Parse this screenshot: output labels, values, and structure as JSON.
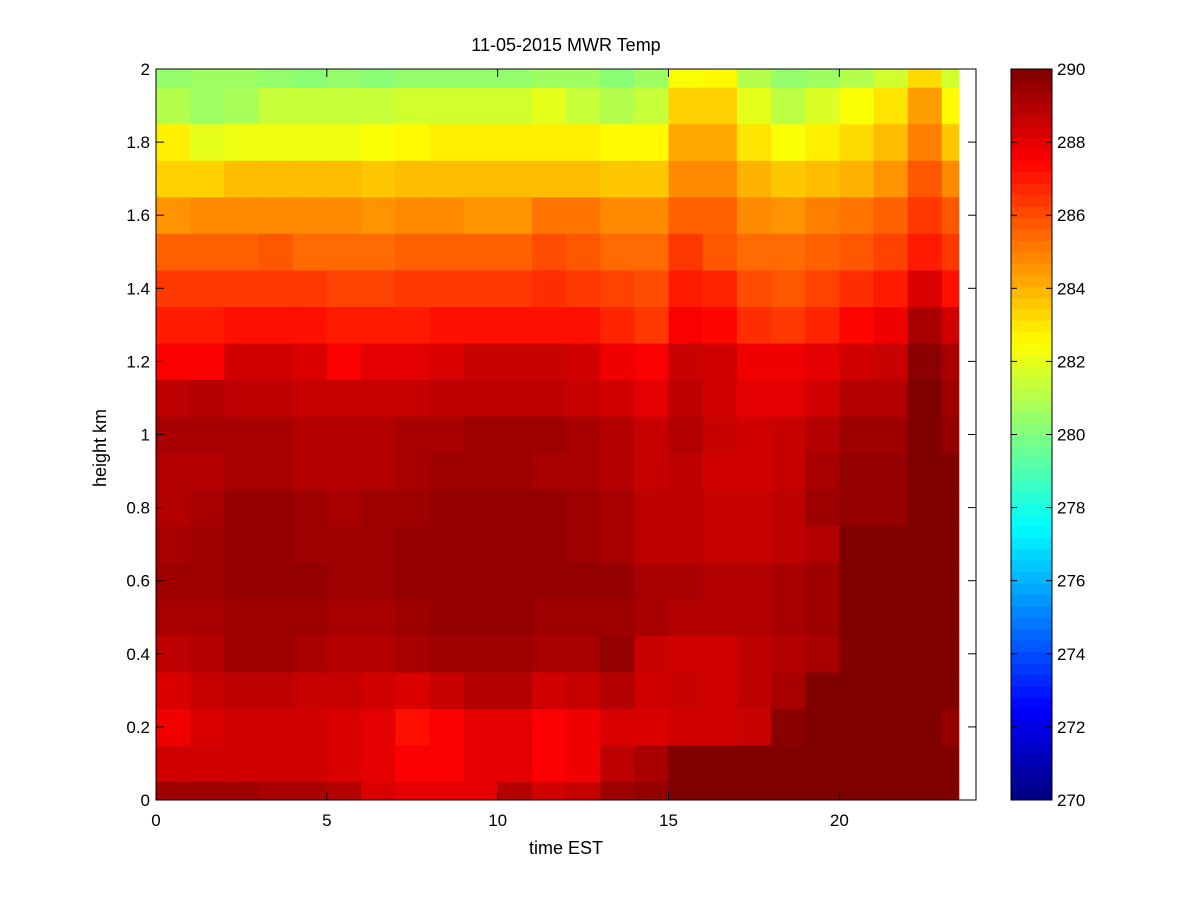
{
  "chart_data": {
    "type": "heatmap",
    "title": "11-05-2015 MWR Temp",
    "xlabel": "time EST",
    "ylabel": "height km",
    "xlim": [
      0,
      24
    ],
    "ylim": [
      0,
      2
    ],
    "x_ticks": [
      "0",
      "5",
      "10",
      "15",
      "20"
    ],
    "y_ticks": [
      "0",
      "0.2",
      "0.4",
      "0.6",
      "0.8",
      "1",
      "1.2",
      "1.4",
      "1.6",
      "1.8",
      "2"
    ],
    "colorbar": {
      "colormap": "jet",
      "clim": [
        270,
        290
      ],
      "ticks": [
        "270",
        "272",
        "274",
        "276",
        "278",
        "280",
        "282",
        "284",
        "286",
        "288",
        "290"
      ]
    },
    "x_edges": [
      0,
      1,
      2,
      3,
      4,
      5,
      6,
      7,
      8,
      9,
      10,
      11,
      12,
      13,
      14,
      15,
      16,
      17,
      18,
      19,
      20,
      21,
      22,
      23,
      23.5
    ],
    "y_edges": [
      0,
      0.05,
      0.15,
      0.25,
      0.35,
      0.45,
      0.55,
      0.65,
      0.75,
      0.85,
      0.95,
      1.05,
      1.15,
      1.25,
      1.35,
      1.45,
      1.55,
      1.65,
      1.75,
      1.85,
      1.95,
      2.0
    ],
    "values": [
      [
        289.4,
        289.4,
        289.4,
        289.2,
        289.2,
        289.0,
        288.2,
        288.0,
        288.0,
        288.0,
        289.0,
        288.4,
        288.6,
        289.4,
        289.6,
        290,
        290,
        290,
        290,
        290,
        290,
        290,
        290,
        290
      ],
      [
        288.4,
        288.4,
        288.4,
        288.4,
        288.4,
        288.2,
        288.0,
        287.6,
        287.6,
        288.0,
        288.0,
        287.6,
        287.8,
        288.8,
        289.2,
        290,
        290,
        290,
        290,
        290,
        290,
        290,
        290,
        290
      ],
      [
        287.8,
        288.2,
        288.4,
        288.4,
        288.4,
        288.2,
        288.0,
        287.2,
        287.6,
        288.0,
        288.0,
        287.6,
        287.8,
        288.2,
        288.2,
        288.4,
        288.4,
        288.6,
        289.8,
        290,
        290,
        290,
        290,
        289.6
      ],
      [
        288.2,
        288.6,
        288.8,
        288.8,
        288.6,
        288.6,
        288.4,
        288.2,
        288.6,
        289.0,
        289.0,
        288.4,
        288.6,
        289.0,
        288.4,
        288.6,
        288.4,
        288.8,
        289.2,
        290,
        290,
        290,
        290,
        290
      ],
      [
        288.8,
        289.0,
        289.4,
        289.4,
        289.2,
        289.0,
        289.0,
        289.2,
        289.4,
        289.4,
        289.4,
        289.2,
        289.2,
        289.6,
        288.6,
        288.4,
        288.4,
        288.8,
        289.0,
        289.2,
        290,
        290,
        290,
        290
      ],
      [
        289.2,
        289.2,
        289.4,
        289.4,
        289.4,
        289.2,
        289.2,
        289.4,
        289.6,
        289.6,
        289.6,
        289.4,
        289.4,
        289.4,
        289.2,
        289.0,
        289.0,
        289.0,
        289.2,
        289.4,
        290,
        290,
        290,
        290
      ],
      [
        289.4,
        289.4,
        289.6,
        289.6,
        289.6,
        289.4,
        289.4,
        289.6,
        289.6,
        289.6,
        289.6,
        289.6,
        289.6,
        289.6,
        289.2,
        289.2,
        289.0,
        289.0,
        289.2,
        289.4,
        290,
        290,
        290,
        290
      ],
      [
        289.2,
        289.4,
        289.6,
        289.6,
        289.4,
        289.4,
        289.4,
        289.6,
        289.6,
        289.6,
        289.6,
        289.6,
        289.4,
        289.2,
        288.8,
        288.8,
        288.6,
        288.6,
        288.8,
        289.0,
        290,
        290,
        290,
        290
      ],
      [
        289.0,
        289.2,
        289.6,
        289.6,
        289.4,
        289.2,
        289.4,
        289.4,
        289.6,
        289.6,
        289.6,
        289.6,
        289.4,
        289.2,
        288.8,
        288.8,
        288.6,
        288.6,
        288.8,
        289.4,
        289.6,
        289.6,
        290,
        290
      ],
      [
        289.0,
        289.0,
        289.2,
        289.2,
        289.0,
        289.0,
        289.0,
        289.2,
        289.4,
        289.4,
        289.4,
        289.2,
        289.2,
        289.0,
        288.6,
        288.8,
        288.4,
        288.4,
        288.6,
        289.2,
        289.6,
        289.6,
        290,
        290
      ],
      [
        289.2,
        289.2,
        289.2,
        289.2,
        289.0,
        289.0,
        289.0,
        289.2,
        289.2,
        289.4,
        289.4,
        289.4,
        289.2,
        289.0,
        288.6,
        289.0,
        288.6,
        288.4,
        288.6,
        289.0,
        289.4,
        289.4,
        290,
        289.6
      ],
      [
        288.8,
        289.0,
        288.8,
        288.8,
        288.6,
        288.6,
        288.6,
        288.6,
        288.8,
        288.8,
        288.8,
        288.8,
        288.6,
        288.4,
        288.0,
        288.8,
        288.4,
        288.0,
        288.0,
        288.4,
        289.0,
        289.0,
        290,
        289.4
      ],
      [
        287.6,
        287.6,
        288.4,
        288.4,
        288.2,
        287.6,
        288.0,
        288.0,
        288.2,
        288.6,
        288.6,
        288.6,
        288.4,
        287.8,
        287.6,
        288.6,
        288.4,
        287.8,
        287.8,
        288.0,
        288.4,
        288.6,
        289.8,
        289.2
      ],
      [
        287.0,
        287.0,
        287.2,
        287.2,
        287.2,
        287.0,
        287.0,
        287.0,
        287.2,
        287.2,
        287.2,
        287.2,
        287.2,
        286.8,
        286.4,
        287.6,
        287.4,
        286.6,
        286.4,
        286.8,
        287.4,
        287.8,
        289.2,
        288.4
      ],
      [
        286.4,
        286.4,
        286.4,
        286.4,
        286.4,
        286.2,
        286.2,
        286.4,
        286.4,
        286.4,
        286.4,
        286.6,
        286.4,
        286.2,
        286.0,
        287.0,
        286.8,
        286.0,
        285.8,
        286.2,
        286.6,
        287.0,
        288.2,
        287.2
      ],
      [
        285.6,
        285.6,
        285.6,
        285.8,
        285.4,
        285.4,
        285.4,
        285.6,
        285.6,
        285.6,
        285.6,
        286.0,
        285.8,
        285.4,
        285.4,
        286.4,
        285.8,
        285.4,
        285.4,
        285.6,
        285.8,
        286.2,
        287.0,
        286.4
      ],
      [
        284.6,
        284.8,
        284.8,
        284.8,
        284.8,
        284.8,
        284.6,
        284.8,
        284.8,
        284.6,
        284.6,
        285.2,
        285.2,
        284.8,
        284.8,
        285.6,
        285.6,
        284.8,
        284.6,
        285.0,
        285.2,
        285.6,
        286.4,
        285.8
      ],
      [
        283.4,
        283.4,
        283.8,
        283.8,
        283.8,
        283.8,
        283.6,
        283.8,
        283.8,
        283.8,
        283.8,
        283.8,
        283.8,
        283.6,
        283.6,
        284.8,
        284.8,
        284.0,
        283.6,
        283.8,
        284.0,
        284.6,
        285.8,
        284.8
      ],
      [
        282.8,
        282.0,
        282.2,
        282.2,
        282.2,
        282.2,
        282.4,
        282.6,
        282.8,
        282.8,
        282.8,
        282.8,
        282.8,
        282.6,
        282.6,
        284.2,
        284.2,
        283.0,
        282.4,
        282.8,
        283.2,
        283.8,
        285.0,
        283.6
      ],
      [
        281.0,
        280.6,
        280.8,
        281.4,
        281.4,
        281.4,
        281.4,
        281.6,
        281.6,
        281.6,
        281.6,
        282.0,
        281.4,
        281.0,
        281.4,
        283.4,
        283.4,
        282.0,
        281.2,
        281.8,
        282.4,
        283.0,
        284.4,
        282.6
      ],
      [
        280.4,
        280.6,
        280.6,
        280.4,
        280.2,
        280.4,
        280.2,
        280.4,
        280.4,
        280.4,
        280.4,
        280.6,
        280.6,
        280.2,
        280.6,
        282.4,
        282.6,
        281.0,
        280.4,
        280.6,
        281.0,
        281.6,
        283.2,
        281.6
      ]
    ]
  }
}
